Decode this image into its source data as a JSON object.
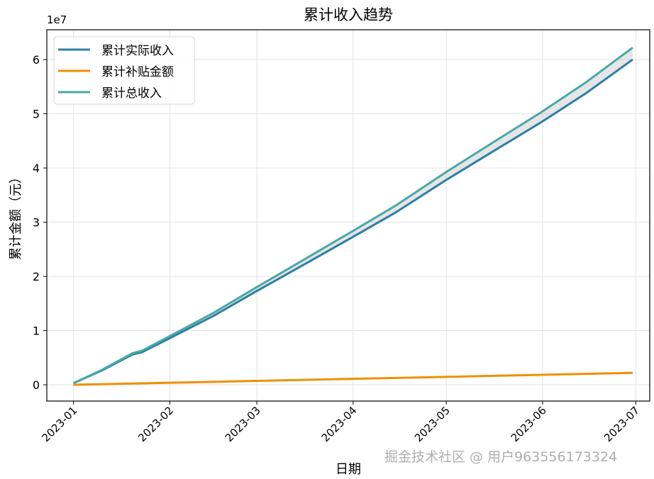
{
  "chart_data": {
    "type": "line",
    "title": "累计收入趋势",
    "xlabel": "日期",
    "ylabel": "累计金额（元）",
    "y_offset_label": "1e7",
    "ylim": [
      -3000000,
      65500000
    ],
    "yticks": [
      0,
      10000000,
      20000000,
      30000000,
      40000000,
      50000000,
      60000000
    ],
    "ytick_labels": [
      "0",
      "1",
      "2",
      "3",
      "4",
      "5",
      "6"
    ],
    "xlim_days": [
      -8.6,
      185.5
    ],
    "xtick_days": [
      0,
      31,
      59,
      90,
      120,
      151,
      181
    ],
    "xtick_labels": [
      "2023-01",
      "2023-02",
      "2023-03",
      "2023-04",
      "2023-05",
      "2023-06",
      "2023-07"
    ],
    "grid": true,
    "legend_position": "top-left",
    "x_days": [
      0,
      9,
      19,
      22,
      31,
      45,
      59,
      73,
      90,
      104,
      120,
      134,
      151,
      165,
      180
    ],
    "series": [
      {
        "name": "累计实际收入",
        "color": "#2e7ea6",
        "values": [
          300000,
          2600000,
          5600000,
          6000000,
          8600000,
          12700000,
          17300000,
          21800000,
          27300000,
          31900000,
          37800000,
          42700000,
          48600000,
          53800000,
          60000000
        ]
      },
      {
        "name": "累计补贴金额",
        "color": "#f18f01",
        "values": [
          0,
          110000,
          232000,
          269000,
          379000,
          550000,
          721000,
          892000,
          1100000,
          1271000,
          1467000,
          1638000,
          1846000,
          2017000,
          2200000
        ]
      },
      {
        "name": "累计总收入",
        "color": "#48a9a6",
        "values": [
          300000,
          2710000,
          5832000,
          6269000,
          8979000,
          13250000,
          18021000,
          22692000,
          28400000,
          33171000,
          39267000,
          44338000,
          50446000,
          55817000,
          62200000
        ]
      }
    ],
    "fill_between": [
      "累计实际收入",
      "累计总收入"
    ]
  },
  "watermark": "掘金技术社区 @ 用户963556173324"
}
